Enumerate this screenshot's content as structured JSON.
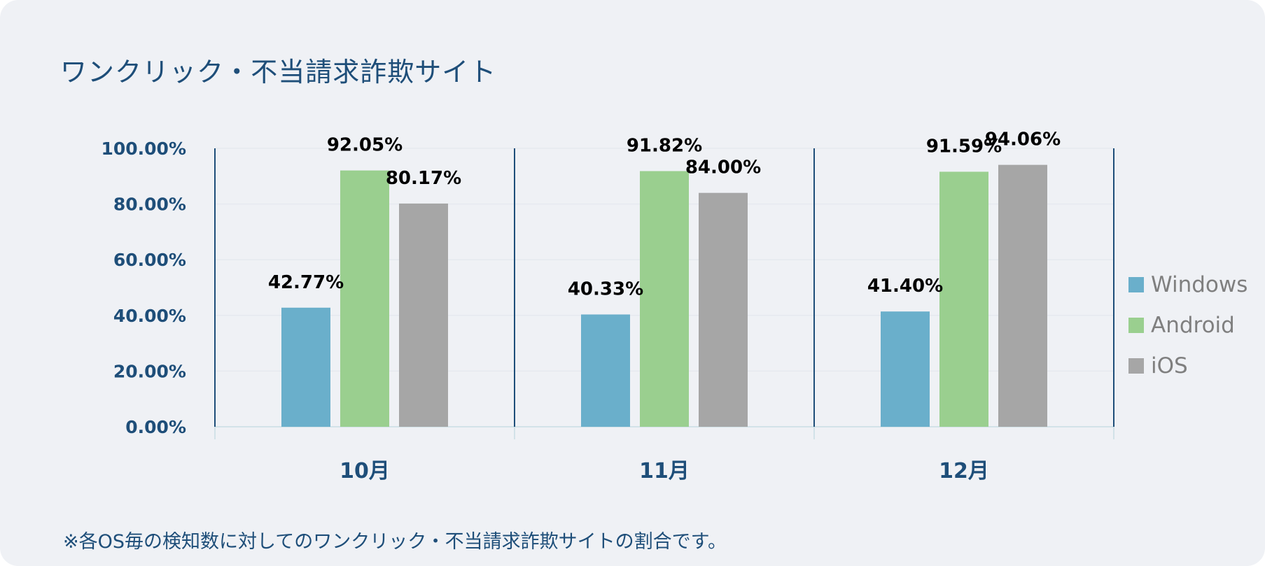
{
  "title": "ワンクリック・不当請求詐欺サイト",
  "note": "※各OS毎の検知数に対してのワンクリック・不当請求詐欺サイトの割合です。",
  "colors": {
    "Windows": "#6aafcb",
    "Android": "#9acf8f",
    "iOS": "#a6a6a6",
    "axis": "#1e4e79"
  },
  "chart_data": {
    "type": "bar",
    "categories": [
      "10月",
      "11月",
      "12月"
    ],
    "series": [
      {
        "name": "Windows",
        "values": [
          42.77,
          40.33,
          41.4
        ],
        "labels": [
          "42.77%",
          "40.33%",
          "41.40%"
        ]
      },
      {
        "name": "Android",
        "values": [
          92.05,
          91.82,
          91.59
        ],
        "labels": [
          "92.05%",
          "91.82%",
          "91.59%"
        ]
      },
      {
        "name": "iOS",
        "values": [
          80.17,
          84.0,
          94.06
        ],
        "labels": [
          "80.17%",
          "84.00%",
          "94.06%"
        ]
      }
    ],
    "yticks": [
      "0.00%",
      "20.00%",
      "40.00%",
      "60.00%",
      "80.00%",
      "100.00%"
    ],
    "ylim": [
      0,
      100
    ],
    "grid": true,
    "legend_position": "right"
  }
}
